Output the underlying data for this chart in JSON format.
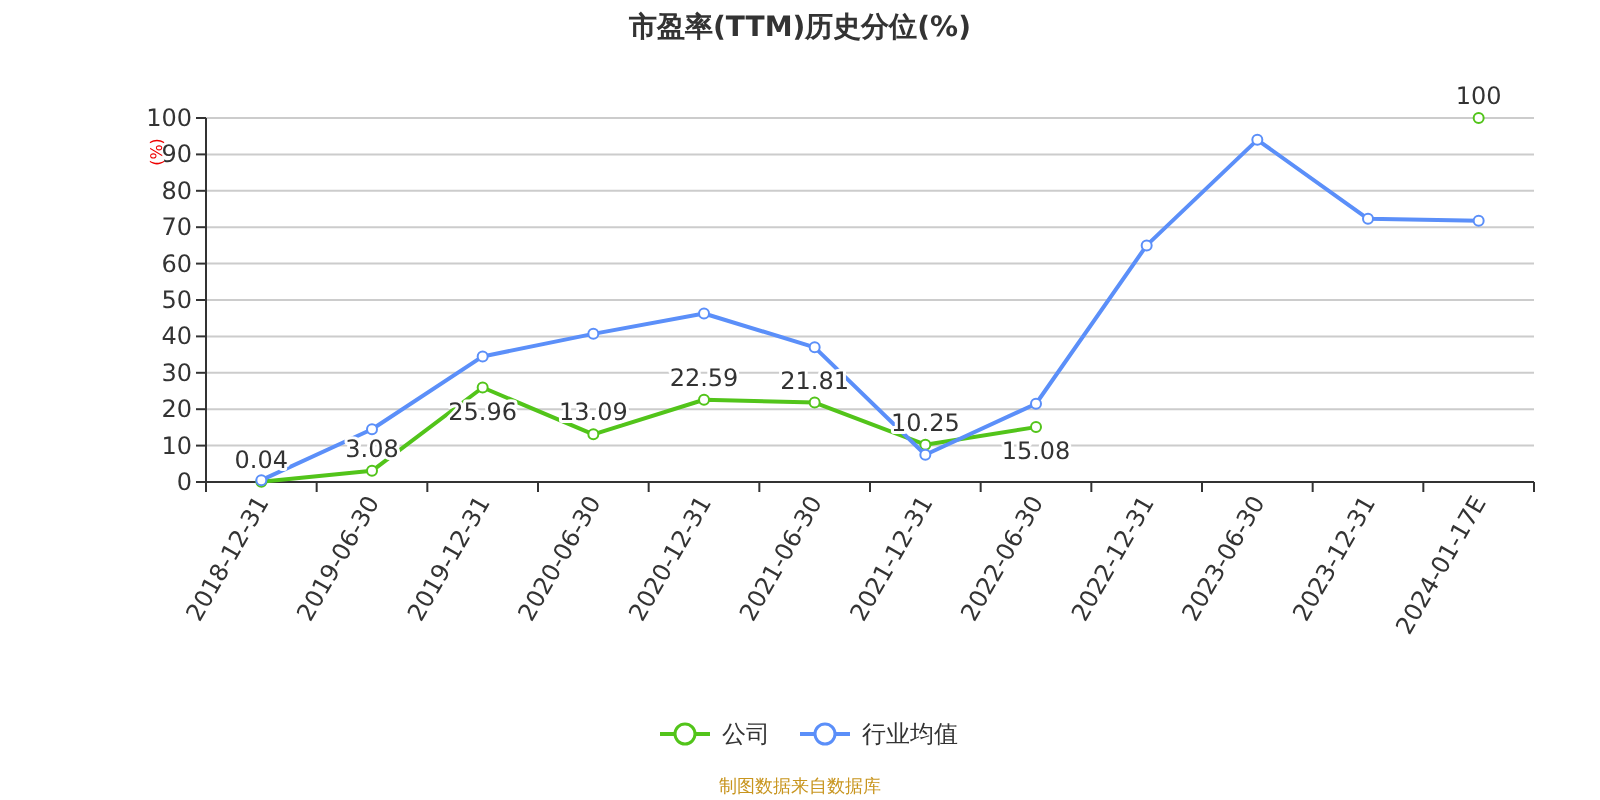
{
  "chart_data": {
    "type": "line",
    "title": "市盈率(TTM)历史分位(%)",
    "ylabel": "(%)",
    "categories": [
      "2018-12-31",
      "2019-06-30",
      "2019-12-31",
      "2020-06-30",
      "2020-12-31",
      "2021-06-30",
      "2021-12-31",
      "2022-06-30",
      "2022-12-31",
      "2023-06-30",
      "2023-12-31",
      "2024-01-17E"
    ],
    "series": [
      {
        "name": "公司",
        "color": "#52c41a",
        "values": [
          0.04,
          3.08,
          25.96,
          13.09,
          22.59,
          21.81,
          10.25,
          15.08,
          null,
          null,
          null,
          100
        ],
        "value_labels": [
          "0.04",
          "3.08",
          "25.96",
          "13.09",
          "22.59",
          "21.81",
          "10.25",
          "15.08",
          null,
          null,
          null,
          "100"
        ]
      },
      {
        "name": "行业均值",
        "color": "#5b8ff9",
        "values": [
          0.5,
          14.5,
          34.5,
          40.7,
          46.3,
          37,
          7.5,
          21.5,
          65,
          94,
          72.3,
          71.8
        ]
      }
    ],
    "ylim": [
      0,
      100
    ],
    "yticks": [
      0,
      10,
      20,
      30,
      40,
      50,
      60,
      70,
      80,
      90,
      100
    ],
    "grid": "y",
    "legend": "bottom",
    "marker": "circle",
    "line_style": "solid",
    "annotations": [
      "制图数据来自数据库"
    ]
  }
}
